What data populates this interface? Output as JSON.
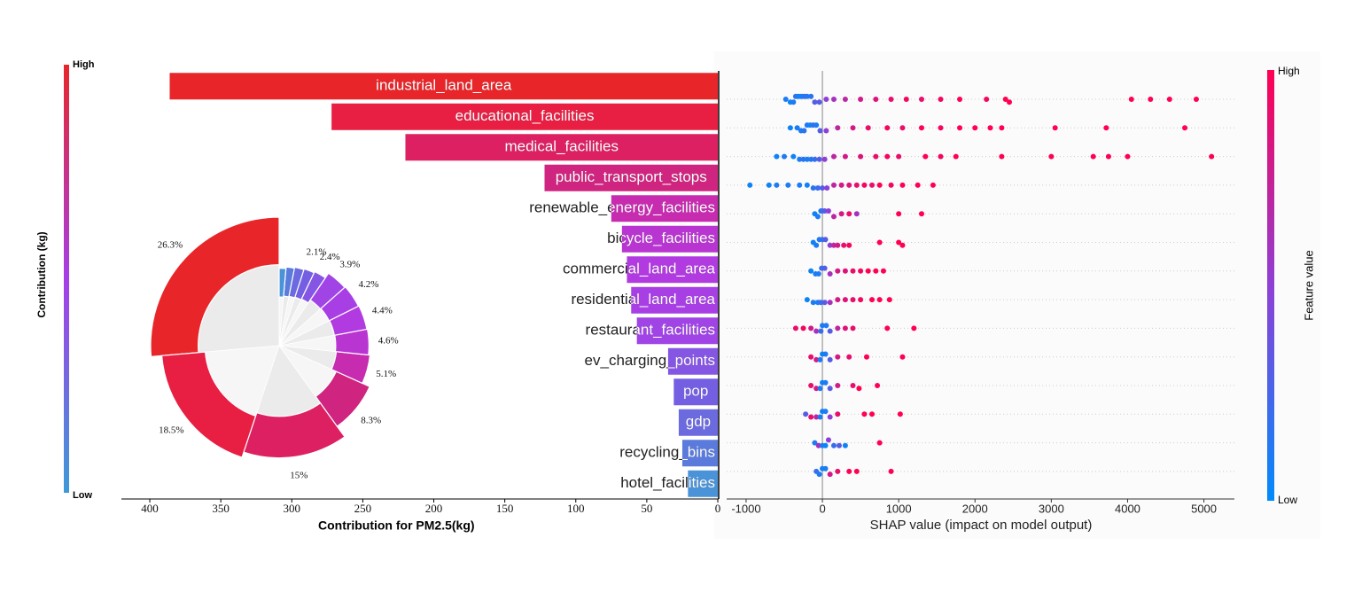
{
  "chart_data": [
    {
      "type": "bar",
      "orientation": "horizontal",
      "xlabel": "Contribution for PM2.5(kg)",
      "categories": [
        "industrial_land_area",
        "educational_facilities",
        "medical_facilities",
        "public_transport_stops",
        "renewable_energy_facilities",
        "bicycle_facilities",
        "commercial_land_area",
        "residential_land_area",
        "restaurant_facilities",
        "ev_charging_points",
        "pop",
        "gdp",
        "recycling_bins",
        "hotel_facilities"
      ],
      "values": [
        386,
        272,
        220,
        122,
        75,
        67.5,
        64,
        61,
        57,
        35,
        31,
        27.5,
        25,
        21
      ],
      "colors": [
        "#e8262a",
        "#e81e42",
        "#dd2062",
        "#cf247f",
        "#c72bb0",
        "#b935d2",
        "#b13ae0",
        "#a83fe5",
        "#a044e6",
        "#8456e3",
        "#745fe2",
        "#6b6adf",
        "#5a7bdc",
        "#4a93d8"
      ],
      "xlim": [
        420,
        0
      ],
      "xticks": [
        400,
        350,
        300,
        250,
        200,
        150,
        100,
        50,
        0
      ],
      "colorbar": {
        "label": "Contribution (kg)",
        "high": "High",
        "low": "Low",
        "colors": [
          "#3c9ad8",
          "#a63ee8",
          "#e8262a"
        ]
      }
    },
    {
      "type": "pie",
      "values": [
        26.3,
        18.5,
        15,
        8.3,
        5.1,
        4.6,
        4.4,
        4.2,
        3.9,
        2.4,
        2.1,
        1.9,
        1.7,
        1.4
      ],
      "value_labels": [
        "26.3%",
        "18.5%",
        "15%",
        "8.3%",
        "5.1%",
        "4.6%",
        "4.4%",
        "4.2%",
        "3.9%",
        "2.4%",
        "2.1%",
        null,
        null,
        null
      ]
    },
    {
      "type": "scatter",
      "xlabel": "SHAP value (impact on model output)",
      "xlim": [
        -1255,
        5400
      ],
      "xticks": [
        -1000,
        0,
        1000,
        2000,
        3000,
        4000,
        5000
      ],
      "rows": [
        {
          "x": [
            -480,
            -420,
            -380,
            -350,
            -320,
            -290,
            -260,
            -230,
            -200,
            -150,
            -100,
            -40,
            50,
            150,
            300,
            500,
            700,
            900,
            1100,
            1300,
            1550,
            1800,
            2150,
            2400,
            2450,
            4050,
            4300,
            4550,
            4900
          ],
          "feature_value": [
            0.1,
            0.05,
            0.1,
            0.15,
            0.1,
            0.05,
            0.1,
            0.2,
            0.1,
            0.15,
            0.3,
            0.3,
            0.5,
            0.6,
            0.7,
            0.8,
            0.85,
            0.9,
            0.95,
            0.9,
            0.95,
            1,
            0.95,
            1,
            1,
            1,
            1,
            1,
            1
          ]
        },
        {
          "x": [
            -420,
            -330,
            -280,
            -240,
            -200,
            -160,
            -120,
            -80,
            -30,
            50,
            200,
            400,
            600,
            850,
            1050,
            1300,
            1550,
            1800,
            2000,
            2200,
            2350,
            3050,
            3720,
            4750
          ],
          "feature_value": [
            0.05,
            0.1,
            0.1,
            0.15,
            0.1,
            0.05,
            0.2,
            0.1,
            0.3,
            0.5,
            0.7,
            0.8,
            0.9,
            0.95,
            0.9,
            1,
            0.95,
            1,
            1,
            1,
            1,
            1,
            1,
            1
          ]
        },
        {
          "x": [
            -600,
            -500,
            -380,
            -300,
            -250,
            -200,
            -150,
            -100,
            -40,
            30,
            150,
            300,
            500,
            700,
            850,
            1000,
            1350,
            1550,
            1750,
            2350,
            3000,
            3550,
            3750,
            4000,
            5100
          ],
          "feature_value": [
            0.05,
            0.1,
            0.05,
            0.1,
            0.15,
            0.1,
            0.1,
            0.2,
            0.3,
            0.5,
            0.7,
            0.8,
            0.85,
            0.9,
            0.95,
            0.9,
            1,
            0.95,
            1,
            1,
            1,
            1,
            1,
            1,
            1
          ]
        },
        {
          "x": [
            -950,
            -700,
            -600,
            -450,
            -300,
            -200,
            -120,
            -60,
            0,
            60,
            150,
            250,
            350,
            450,
            550,
            650,
            750,
            900,
            1050,
            1250,
            1450
          ],
          "feature_value": [
            0.05,
            0.05,
            0.1,
            0.1,
            0.1,
            0.05,
            0.15,
            0.2,
            0.3,
            0.5,
            0.7,
            0.8,
            0.85,
            0.9,
            0.95,
            0.9,
            1,
            0.95,
            1,
            1,
            1
          ]
        },
        {
          "x": [
            -100,
            -60,
            -20,
            0,
            30,
            80,
            150,
            250,
            350,
            450,
            1000,
            1300
          ],
          "feature_value": [
            0.05,
            0.1,
            0.1,
            0.2,
            0.3,
            0.5,
            0.7,
            0.8,
            0.9,
            0.6,
            1,
            1
          ]
        },
        {
          "x": [
            -120,
            -80,
            -40,
            0,
            40,
            100,
            150,
            200,
            280,
            350,
            750,
            1000,
            1050
          ],
          "feature_value": [
            0.05,
            0.1,
            0.1,
            0.2,
            0.3,
            0.5,
            0.7,
            0.8,
            0.9,
            0.95,
            1,
            1,
            1
          ]
        },
        {
          "x": [
            -150,
            -90,
            -50,
            -10,
            30,
            100,
            200,
            300,
            400,
            500,
            600,
            700,
            800
          ],
          "feature_value": [
            0.05,
            0.1,
            0.1,
            0.2,
            0.3,
            0.6,
            0.8,
            0.85,
            0.9,
            0.95,
            1,
            1,
            1
          ]
        },
        {
          "x": [
            -200,
            -120,
            -60,
            -20,
            30,
            100,
            200,
            300,
            400,
            500,
            650,
            750,
            880
          ],
          "feature_value": [
            0.05,
            0.1,
            0.1,
            0.2,
            0.3,
            0.6,
            0.8,
            0.85,
            0.9,
            0.95,
            1,
            1,
            1
          ]
        },
        {
          "x": [
            -350,
            -250,
            -150,
            -80,
            -20,
            0,
            50,
            100,
            200,
            300,
            400,
            850,
            1200
          ],
          "feature_value": [
            0.9,
            0.95,
            0.8,
            0.6,
            0.2,
            0.1,
            0.1,
            0.3,
            0.7,
            0.85,
            0.9,
            1,
            1
          ]
        },
        {
          "x": [
            -150,
            -80,
            -30,
            0,
            40,
            100,
            200,
            350,
            580,
            1050
          ],
          "feature_value": [
            0.9,
            0.8,
            0.1,
            0.05,
            0.1,
            0.3,
            0.8,
            0.9,
            1,
            1
          ]
        },
        {
          "x": [
            -150,
            -80,
            -30,
            0,
            40,
            100,
            200,
            400,
            480,
            720
          ],
          "feature_value": [
            0.9,
            0.8,
            0.1,
            0.05,
            0.1,
            0.3,
            0.8,
            0.9,
            1,
            1
          ]
        },
        {
          "x": [
            -220,
            -150,
            -80,
            -30,
            0,
            40,
            100,
            200,
            550,
            650,
            1020
          ],
          "feature_value": [
            0.3,
            0.9,
            0.7,
            0.1,
            0.05,
            0.1,
            0.5,
            0.9,
            1,
            1,
            1
          ]
        },
        {
          "x": [
            -100,
            -50,
            0,
            40,
            80,
            150,
            220,
            300,
            750
          ],
          "feature_value": [
            0.1,
            0.6,
            0.1,
            0.05,
            0.5,
            0.2,
            0.3,
            0.05,
            1
          ]
        },
        {
          "x": [
            -80,
            -40,
            0,
            40,
            100,
            200,
            350,
            450,
            900
          ],
          "feature_value": [
            0.2,
            0.1,
            0.05,
            0.1,
            0.8,
            0.9,
            1,
            1,
            1
          ]
        }
      ],
      "colorbar": {
        "label": "Feature value",
        "high": "High",
        "low": "Low",
        "colors": [
          "#008bfb",
          "#8f3fd6",
          "#ff0052"
        ]
      }
    }
  ]
}
